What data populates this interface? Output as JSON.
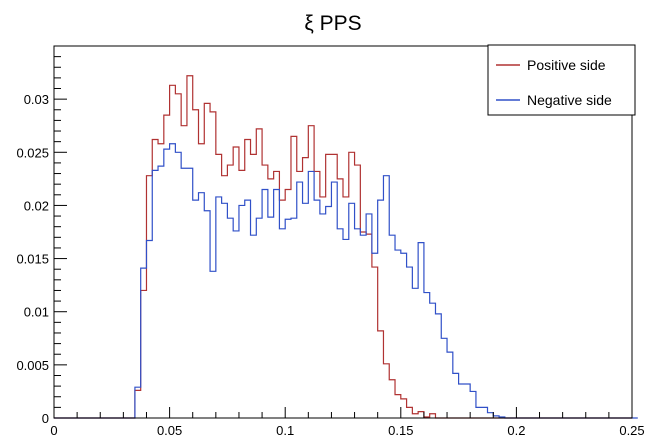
{
  "chart_data": {
    "type": "line",
    "title": "ξ PPS",
    "xlabel": "",
    "ylabel": "",
    "xlim": [
      0,
      0.25
    ],
    "ylim": [
      0,
      0.035
    ],
    "x_ticks": [
      {
        "value": 0,
        "label": "0"
      },
      {
        "value": 0.05,
        "label": "0.05"
      },
      {
        "value": 0.1,
        "label": "0.1"
      },
      {
        "value": 0.15,
        "label": "0.15"
      },
      {
        "value": 0.2,
        "label": "0.2"
      },
      {
        "value": 0.25,
        "label": "0.25"
      }
    ],
    "y_ticks": [
      {
        "value": 0,
        "label": "0"
      },
      {
        "value": 0.005,
        "label": "0.005"
      },
      {
        "value": 0.01,
        "label": "0.01"
      },
      {
        "value": 0.015,
        "label": "0.015"
      },
      {
        "value": 0.02,
        "label": "0.02"
      },
      {
        "value": 0.025,
        "label": "0.025"
      },
      {
        "value": 0.03,
        "label": "0.03"
      }
    ],
    "grid": false,
    "legend_position": "top-right",
    "bin_width": 0.0025,
    "bin_start": 0,
    "series": [
      {
        "name": "Positive side",
        "color": "#b03232",
        "values": [
          0,
          0,
          0,
          0,
          0,
          0,
          0,
          0,
          0,
          0,
          0,
          0,
          0,
          0,
          0.0026,
          0.012,
          0.0228,
          0.0262,
          0.0258,
          0.0285,
          0.0313,
          0.0305,
          0.0275,
          0.0322,
          0.029,
          0.0258,
          0.0296,
          0.0288,
          0.0248,
          0.0228,
          0.0238,
          0.0255,
          0.0233,
          0.0262,
          0.0248,
          0.0272,
          0.0238,
          0.0225,
          0.0232,
          0.0205,
          0.0215,
          0.0265,
          0.0232,
          0.0245,
          0.0275,
          0.0232,
          0.0208,
          0.0248,
          0.0248,
          0.0225,
          0.0208,
          0.025,
          0.0238,
          0.0175,
          0.0173,
          0.0142,
          0.0082,
          0.0051,
          0.0036,
          0.0022,
          0.0018,
          0.001,
          0.0004,
          0.0006,
          0.0001,
          0.0004,
          0,
          0,
          0,
          0,
          0,
          0,
          0,
          0,
          0,
          0,
          0,
          0,
          0,
          0,
          0,
          0,
          0,
          0,
          0,
          0,
          0,
          0,
          0,
          0,
          0,
          0,
          0,
          0,
          0,
          0,
          0,
          0,
          0,
          0
        ]
      },
      {
        "name": "Negative side",
        "color": "#3050c8",
        "values": [
          0,
          0,
          0,
          0,
          0,
          0,
          0,
          0,
          0,
          0,
          0,
          0,
          0,
          0,
          0.0029,
          0.0141,
          0.0167,
          0.0233,
          0.0237,
          0.0253,
          0.0258,
          0.025,
          0.0235,
          0.0235,
          0.0205,
          0.0212,
          0.0195,
          0.0138,
          0.0208,
          0.0202,
          0.0188,
          0.0176,
          0.02,
          0.0205,
          0.0172,
          0.0188,
          0.0215,
          0.0189,
          0.0215,
          0.0178,
          0.0187,
          0.0188,
          0.0222,
          0.0202,
          0.0232,
          0.0205,
          0.0192,
          0.0199,
          0.0222,
          0.0178,
          0.0168,
          0.0202,
          0.0178,
          0.0172,
          0.0192,
          0.0155,
          0.0205,
          0.0228,
          0.0172,
          0.0158,
          0.0155,
          0.0142,
          0.0122,
          0.0165,
          0.0118,
          0.0108,
          0.0098,
          0.0075,
          0.0062,
          0.0042,
          0.0032,
          0.0032,
          0.0025,
          0.001,
          0.001,
          0.0005,
          0.0002,
          0.0001,
          0,
          0,
          0,
          0,
          0,
          0,
          0,
          0,
          0,
          0,
          0,
          0,
          0,
          0,
          0,
          0,
          0,
          0,
          0,
          0,
          0,
          0,
          0
        ]
      }
    ]
  }
}
